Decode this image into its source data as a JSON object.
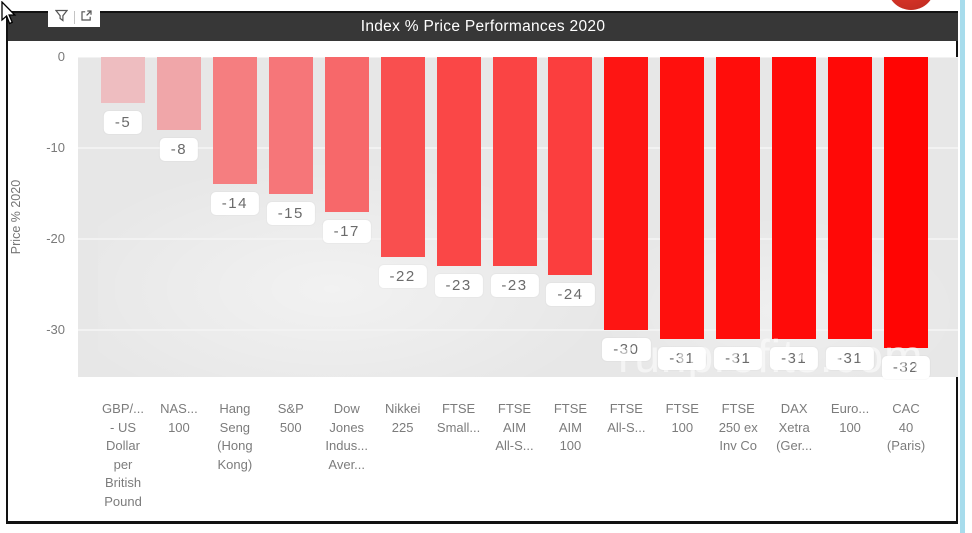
{
  "header": {
    "title": "Index % Price Performances 2020",
    "bg_color": "#373737",
    "text_color": "#ffffff"
  },
  "toolbar": {
    "filter_icon": "filter",
    "focus_icon": "focus-mode"
  },
  "window": {
    "selection_border_color": "#a7dcec",
    "decoration_circle_color": "#d23226"
  },
  "watermark": {
    "text": "runprofits.com"
  },
  "chart_data": {
    "type": "bar",
    "title": "Index % Price Performances 2020",
    "xlabel": "",
    "ylabel": "Price % 2020",
    "ylim": [
      -35,
      0
    ],
    "yticks": [
      0,
      -10,
      -20,
      -30
    ],
    "grid": true,
    "legend": false,
    "plot_bg": "#e7e7e7",
    "gridline_color": "#f2f2f2",
    "axis_text_color": "#7a7a7a",
    "categories": [
      "GBP/...\n- US\nDollar\nper\nBritish\nPound",
      "NAS...\n100",
      "Hang\nSeng\n(Hong\nKong)",
      "S&P\n500",
      "Dow\nJones\nIndus...\nAver...",
      "Nikkei\n225",
      "FTSE\nSmall...",
      "FTSE\nAIM\nAll-S...",
      "FTSE\nAIM\n100",
      "FTSE\nAll-S...",
      "FTSE\n100",
      "FTSE\n250 ex\nInv Co",
      "DAX\nXetra\n(Ger...",
      "Euro...\n100",
      "CAC\n40\n(Paris)"
    ],
    "values": [
      -5,
      -8,
      -14,
      -15,
      -17,
      -22,
      -23,
      -23,
      -24,
      -30,
      -31,
      -31,
      -31,
      -31,
      -32
    ],
    "data_labels": [
      "-5",
      "-8",
      "-14",
      "-15",
      "-17",
      "-22",
      "-23",
      "-23",
      "-24",
      "-30",
      "-31",
      "-31",
      "-31",
      "-31",
      "-32"
    ],
    "bar_colors": [
      "#eebdc0",
      "#f0a6a9",
      "#f57e80",
      "#f67679",
      "#f7686a",
      "#f94f4f",
      "#fa4747",
      "#fa4444",
      "#fb3e3e",
      "#fe1513",
      "#ff100d",
      "#ff0d0b",
      "#ff0b09",
      "#ff0907",
      "#ff0503"
    ]
  }
}
